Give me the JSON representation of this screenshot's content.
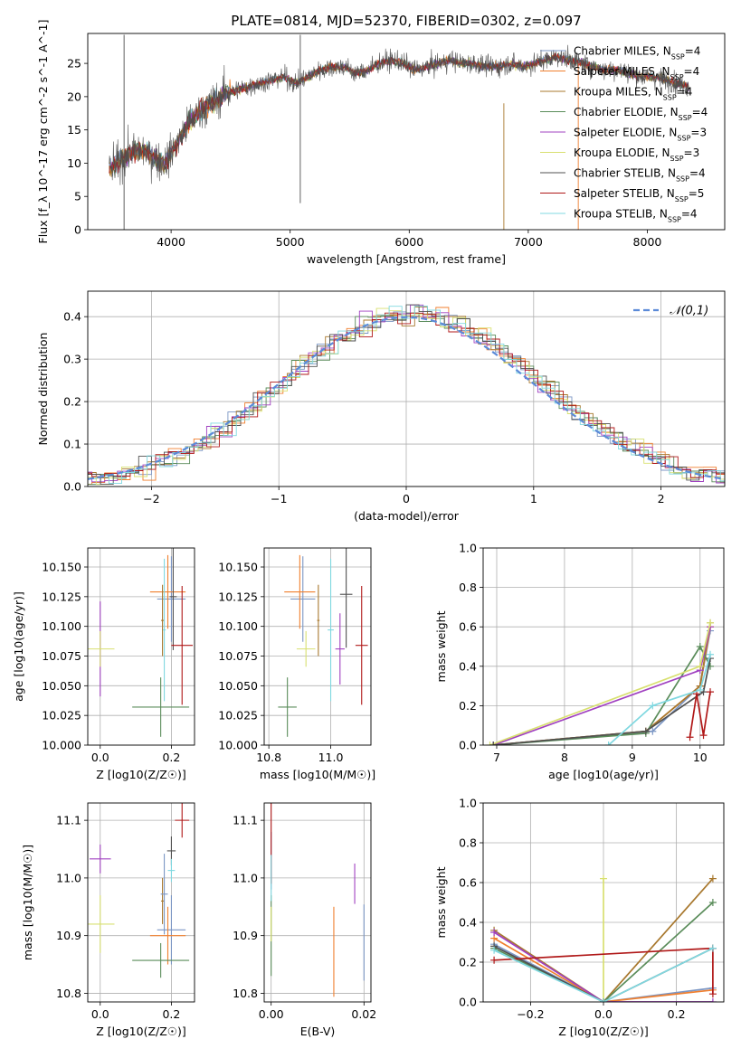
{
  "title": "PLATE=0814, MJD=52370, FIBERID=0302, z=0.097",
  "series_styles": [
    {
      "name": "Chabrier MILES",
      "nssp": "4",
      "color": "#7b96c4"
    },
    {
      "name": "Salpeter MILES",
      "nssp": "4",
      "color": "#f07f2e"
    },
    {
      "name": "Kroupa MILES",
      "nssp": "4",
      "color": "#a8782e"
    },
    {
      "name": "Chabrier ELODIE",
      "nssp": "4",
      "color": "#5a8c5a"
    },
    {
      "name": "Salpeter ELODIE",
      "nssp": "3",
      "color": "#a040c0"
    },
    {
      "name": "Kroupa ELODIE",
      "nssp": "3",
      "color": "#d8e070"
    },
    {
      "name": "Chabrier STELIB",
      "nssp": "4",
      "color": "#505050"
    },
    {
      "name": "Salpeter STELIB",
      "nssp": "5",
      "color": "#b01818"
    },
    {
      "name": "Kroupa STELIB",
      "nssp": "4",
      "color": "#80d8e0"
    }
  ],
  "chart_data": [
    {
      "id": "spectrum",
      "type": "line",
      "title": "PLATE=0814, MJD=52370, FIBERID=0302, z=0.097",
      "xlabel": "wavelength [Angstrom, rest frame]",
      "ylabel": "Flux [f_λ 10^-17 erg cm^-2 s^-1 A^-1]",
      "xlim": [
        3300,
        8650
      ],
      "ylim": [
        0,
        29.5
      ],
      "xticks": [
        4000,
        5000,
        6000,
        7000,
        8000
      ],
      "yticks": [
        0,
        5,
        10,
        15,
        20,
        25
      ],
      "legend": "right",
      "data_trend": {
        "x": [
          3480,
          3550,
          3650,
          3750,
          3850,
          3950,
          4050,
          4150,
          4250,
          4350,
          4450,
          4550,
          4650,
          4750,
          4850,
          4950,
          5050,
          5150,
          5250,
          5350,
          5450,
          5550,
          5650,
          5750,
          5850,
          5950,
          6050,
          6150,
          6250,
          6350,
          6450,
          6550,
          6650,
          6750,
          6850,
          6950,
          7050,
          7150,
          7250,
          7350,
          7450,
          7550,
          7650,
          7750,
          7850,
          7950,
          8050,
          8150,
          8250,
          8350
        ],
        "y": [
          9,
          10,
          11.5,
          12,
          11,
          10,
          13,
          16,
          18,
          19,
          20.5,
          21,
          21.5,
          22,
          22.5,
          23,
          22,
          23,
          24,
          24.5,
          24.5,
          23.5,
          24,
          25,
          25.5,
          25,
          24,
          24.5,
          25,
          25.5,
          25,
          25,
          24.5,
          24.5,
          25,
          24.5,
          25,
          25.5,
          26,
          25.5,
          25,
          24.5,
          24,
          24,
          23.5,
          23,
          23,
          22.5,
          22,
          21.5
        ]
      },
      "spikes": [
        {
          "x": 3605,
          "top": 29.3,
          "bottom": 0
        },
        {
          "x": 5085,
          "top": 29.3,
          "bottom": 4
        },
        {
          "x": 6795,
          "top": 19,
          "bottom": 0
        },
        {
          "x": 7420,
          "top": 25,
          "bottom": 0
        }
      ]
    },
    {
      "id": "residual-histogram",
      "type": "bar",
      "xlabel": "(data-model)/error",
      "ylabel": "Normed distribution",
      "xlim": [
        -2.5,
        2.5
      ],
      "ylim": [
        0,
        0.46
      ],
      "xticks": [
        -2,
        -1,
        0,
        1,
        2
      ],
      "yticks": [
        0,
        0.1,
        0.2,
        0.3,
        0.4
      ],
      "grid": true,
      "legend": "top-right",
      "reference": {
        "name": "𝒩(0,1)",
        "color": "#5b8ad8",
        "mu": 0,
        "sigma": 1
      }
    },
    {
      "id": "age-vs-Z",
      "type": "scatter",
      "xlabel": "Z [log10(Z/Z☉)]",
      "ylabel": "age [log10(age/yr)]",
      "xlim": [
        -0.035,
        0.265
      ],
      "ylim": [
        10.0,
        10.166
      ],
      "xticks": [
        0.0,
        0.2
      ],
      "yticks": [
        10.0,
        10.025,
        10.05,
        10.075,
        10.1,
        10.125,
        10.15
      ],
      "points": [
        {
          "series": 0,
          "x": 0.2,
          "y": 10.123,
          "xerr": 0.04,
          "yerr": 0.036
        },
        {
          "series": 1,
          "x": 0.19,
          "y": 10.129,
          "xerr": 0.05,
          "yerr": 0.031
        },
        {
          "series": 2,
          "x": 0.175,
          "y": 10.105,
          "xerr": 0.004,
          "yerr": 0.03
        },
        {
          "series": 3,
          "x": 0.17,
          "y": 10.032,
          "xerr": 0.08,
          "yerr": 0.025
        },
        {
          "series": 4,
          "x": 0.0,
          "y": 10.081,
          "xerr": 0.002,
          "yerr": 0.04
        },
        {
          "series": 5,
          "x": 0.0,
          "y": 10.081,
          "xerr": 0.04,
          "yerr": 0.015
        },
        {
          "series": 6,
          "x": 0.205,
          "y": 10.125,
          "xerr": 0.01,
          "yerr": 0.045
        },
        {
          "series": 7,
          "x": 0.23,
          "y": 10.084,
          "xerr": 0.03,
          "yerr": 0.05
        },
        {
          "series": 8,
          "x": 0.18,
          "y": 10.097,
          "xerr": 0.004,
          "yerr": 0.06
        }
      ]
    },
    {
      "id": "age-vs-mass",
      "type": "scatter",
      "xlabel": "mass [log10(M/M☉)]",
      "ylabel": "",
      "xlim": [
        10.785,
        11.13
      ],
      "ylim": [
        10.0,
        10.166
      ],
      "xticks": [
        10.8,
        11.0
      ],
      "yticks": [
        10.0,
        10.025,
        10.05,
        10.075,
        10.1,
        10.125,
        10.15
      ],
      "points": [
        {
          "series": 0,
          "x": 10.91,
          "y": 10.123,
          "xerr": 0.04,
          "yerr": 0.036
        },
        {
          "series": 1,
          "x": 10.9,
          "y": 10.129,
          "xerr": 0.05,
          "yerr": 0.031
        },
        {
          "series": 2,
          "x": 10.96,
          "y": 10.105,
          "xerr": 0.004,
          "yerr": 0.03
        },
        {
          "series": 3,
          "x": 10.86,
          "y": 10.032,
          "xerr": 0.03,
          "yerr": 0.025
        },
        {
          "series": 4,
          "x": 11.03,
          "y": 10.081,
          "xerr": 0.015,
          "yerr": 0.03
        },
        {
          "series": 5,
          "x": 10.92,
          "y": 10.081,
          "xerr": 0.03,
          "yerr": 0.015
        },
        {
          "series": 6,
          "x": 11.05,
          "y": 10.127,
          "xerr": 0.02,
          "yerr": 0.045
        },
        {
          "series": 7,
          "x": 11.1,
          "y": 10.084,
          "xerr": 0.02,
          "yerr": 0.05
        },
        {
          "series": 8,
          "x": 11.0,
          "y": 10.097,
          "xerr": 0.01,
          "yerr": 0.06
        }
      ]
    },
    {
      "id": "mass-weight-vs-age",
      "type": "line",
      "xlabel": "age [log10(age/yr)]",
      "ylabel": "mass weight",
      "xlim": [
        6.8,
        10.35
      ],
      "ylim": [
        0,
        1.0
      ],
      "xticks": [
        7,
        8,
        9,
        10
      ],
      "yticks": [
        0.0,
        0.2,
        0.4,
        0.6,
        0.8,
        1.0
      ],
      "grid": true,
      "series": [
        {
          "series": 0,
          "x": [
            6.95,
            9.3,
            10.0,
            10.15
          ],
          "y": [
            0.0,
            0.07,
            0.3,
            0.58
          ]
        },
        {
          "series": 1,
          "x": [
            6.95,
            9.2,
            10.0,
            10.15
          ],
          "y": [
            0.0,
            0.07,
            0.3,
            0.6
          ]
        },
        {
          "series": 2,
          "x": [
            6.95,
            9.2,
            10.0,
            10.15
          ],
          "y": [
            0.0,
            0.07,
            0.3,
            0.62
          ]
        },
        {
          "series": 3,
          "x": [
            6.95,
            9.2,
            10.0,
            10.15
          ],
          "y": [
            0.0,
            0.06,
            0.5,
            0.4
          ]
        },
        {
          "series": 4,
          "x": [
            6.95,
            10.0,
            10.15
          ],
          "y": [
            0.0,
            0.38,
            0.6
          ]
        },
        {
          "series": 5,
          "x": [
            6.9,
            10.0,
            10.15
          ],
          "y": [
            0.0,
            0.4,
            0.62
          ]
        },
        {
          "series": 6,
          "x": [
            6.95,
            9.2,
            10.05,
            10.15
          ],
          "y": [
            0.0,
            0.07,
            0.27,
            0.44
          ]
        },
        {
          "series": 7,
          "x": [
            9.85,
            9.95,
            10.05,
            10.15
          ],
          "y": [
            0.04,
            0.26,
            0.05,
            0.27
          ]
        },
        {
          "series": 8,
          "x": [
            8.65,
            9.3,
            10.0,
            10.15
          ],
          "y": [
            0.0,
            0.2,
            0.28,
            0.46
          ]
        }
      ]
    },
    {
      "id": "mass-vs-Z",
      "type": "scatter",
      "xlabel": "Z [log10(Z/Z☉)]",
      "ylabel": "mass [log10(M/M☉)]",
      "xlim": [
        -0.035,
        0.265
      ],
      "ylim": [
        10.785,
        11.13
      ],
      "xticks": [
        0.0,
        0.2
      ],
      "yticks": [
        10.8,
        10.9,
        11.0,
        11.1
      ],
      "points": [
        {
          "series": 0,
          "x": 0.2,
          "y": 10.91,
          "xerr": 0.04,
          "yerr": 0.06
        },
        {
          "series": 1,
          "x": 0.19,
          "y": 10.9,
          "xerr": 0.05,
          "yerr": 0.05
        },
        {
          "series": 2,
          "x": 0.175,
          "y": 10.96,
          "xerr": 0.004,
          "yerr": 0.04
        },
        {
          "series": 3,
          "x": 0.17,
          "y": 10.857,
          "xerr": 0.08,
          "yerr": 0.03
        },
        {
          "series": 4,
          "x": 0.0,
          "y": 11.033,
          "xerr": 0.03,
          "yerr": 0.025
        },
        {
          "series": 5,
          "x": 0.0,
          "y": 10.92,
          "xerr": 0.04,
          "yerr": 0.05
        },
        {
          "series": 6,
          "x": 0.2,
          "y": 11.047,
          "xerr": 0.012,
          "yerr": 0.025
        },
        {
          "series": 7,
          "x": 0.23,
          "y": 11.1,
          "xerr": 0.02,
          "yerr": 0.03
        },
        {
          "series": 8,
          "x": 0.2,
          "y": 11.013,
          "xerr": 0.01,
          "yerr": 0.02
        },
        {
          "series": 0,
          "x": 0.18,
          "y": 10.972,
          "xerr": 0.01,
          "yerr": 0.07
        }
      ]
    },
    {
      "id": "mass-vs-ebv",
      "type": "scatter",
      "xlabel": "E(B-V)",
      "ylabel": "",
      "xlim": [
        -0.0015,
        0.0215
      ],
      "ylim": [
        10.785,
        11.13
      ],
      "xticks": [
        0.0,
        0.02
      ],
      "yticks": [
        10.8,
        10.9,
        11.0,
        11.1
      ],
      "points": [
        {
          "series": 0,
          "x": 0.0,
          "y": 11.03,
          "xerr": 0.0,
          "yerr": 0.05
        },
        {
          "series": 7,
          "x": 0.0,
          "y": 11.06,
          "xerr": 0.0,
          "yerr": 0.07
        },
        {
          "series": 3,
          "x": 0.0,
          "y": 10.9,
          "xerr": 0.0,
          "yerr": 0.07
        },
        {
          "series": 5,
          "x": 0.0,
          "y": 10.92,
          "xerr": 0.0,
          "yerr": 0.03
        },
        {
          "series": 8,
          "x": 0.0,
          "y": 11.0,
          "xerr": 0.0,
          "yerr": 0.04
        },
        {
          "series": 1,
          "x": 0.0135,
          "y": 10.872,
          "xerr": 0.0,
          "yerr": 0.078
        },
        {
          "series": 0,
          "x": 0.02,
          "y": 10.888,
          "xerr": 0.0,
          "yerr": 0.066
        },
        {
          "series": 4,
          "x": 0.018,
          "y": 10.99,
          "xerr": 0.0,
          "yerr": 0.035
        }
      ]
    },
    {
      "id": "mass-weight-vs-Z",
      "type": "line",
      "xlabel": "Z [log10(Z/Z☉)]",
      "ylabel": "mass weight",
      "xlim": [
        -0.33,
        0.33
      ],
      "ylim": [
        0,
        1.0
      ],
      "xticks": [
        -0.2,
        0.0,
        0.2
      ],
      "yticks": [
        0.0,
        0.2,
        0.4,
        0.6,
        0.8,
        1.0
      ],
      "grid": true,
      "series": [
        {
          "series": 0,
          "x": [
            -0.3,
            0.0,
            0.3
          ],
          "y": [
            0.29,
            0.0,
            0.07
          ]
        },
        {
          "series": 1,
          "x": [
            -0.3,
            0.0,
            0.3
          ],
          "y": [
            0.32,
            0.0,
            0.06
          ]
        },
        {
          "series": 2,
          "x": [
            -0.3,
            0.0,
            0.3
          ],
          "y": [
            0.36,
            0.0,
            0.62
          ]
        },
        {
          "series": 3,
          "x": [
            -0.3,
            0.0,
            0.3
          ],
          "y": [
            0.27,
            0.0,
            0.5
          ]
        },
        {
          "series": 4,
          "x": [
            -0.3,
            0.0,
            0.3
          ],
          "y": [
            0.35,
            0.0,
            0.0
          ]
        },
        {
          "series": 5,
          "x": [
            0.0,
            0.0
          ],
          "y": [
            0.0,
            0.62
          ]
        },
        {
          "series": 6,
          "x": [
            -0.3,
            0.0,
            0.3
          ],
          "y": [
            0.28,
            0.0,
            0.27
          ]
        },
        {
          "series": 7,
          "x": [
            -0.3,
            0.3,
            0.3
          ],
          "y": [
            0.21,
            0.27,
            0.04
          ]
        },
        {
          "series": 8,
          "x": [
            -0.3,
            0.0,
            0.3
          ],
          "y": [
            0.26,
            0.0,
            0.27
          ]
        }
      ]
    }
  ]
}
